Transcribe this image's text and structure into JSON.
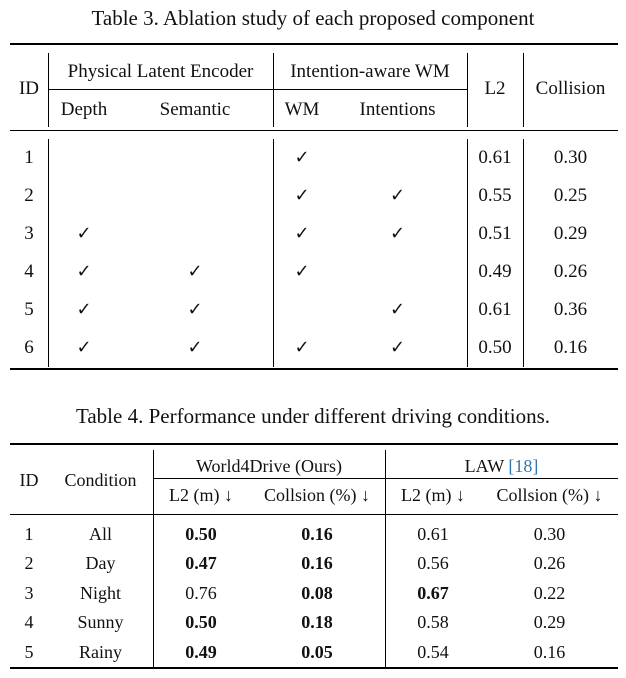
{
  "table3": {
    "caption": "Table 3. Ablation study of each proposed component",
    "headers": {
      "id": "ID",
      "group_physical": "Physical Latent Encoder",
      "group_intention": "Intention-aware WM",
      "depth": "Depth",
      "semantic": "Semantic",
      "wm": "WM",
      "intentions": "Intentions",
      "l2": "L2",
      "collision": "Collision"
    },
    "check_symbol": "✓",
    "rows": [
      {
        "id": "1",
        "depth": false,
        "semantic": false,
        "wm": true,
        "intentions": false,
        "l2": "0.61",
        "collision": "0.30"
      },
      {
        "id": "2",
        "depth": false,
        "semantic": false,
        "wm": true,
        "intentions": true,
        "l2": "0.55",
        "collision": "0.25"
      },
      {
        "id": "3",
        "depth": true,
        "semantic": false,
        "wm": true,
        "intentions": true,
        "l2": "0.51",
        "collision": "0.29"
      },
      {
        "id": "4",
        "depth": true,
        "semantic": true,
        "wm": true,
        "intentions": false,
        "l2": "0.49",
        "collision": "0.26"
      },
      {
        "id": "5",
        "depth": true,
        "semantic": true,
        "wm": false,
        "intentions": true,
        "l2": "0.61",
        "collision": "0.36"
      },
      {
        "id": "6",
        "depth": true,
        "semantic": true,
        "wm": true,
        "intentions": true,
        "l2": "0.50",
        "collision": "0.16"
      }
    ]
  },
  "table4": {
    "caption": "Table 4. Performance under different driving conditions.",
    "headers": {
      "id": "ID",
      "condition": "Condition",
      "group_ours": "World4Drive (Ours)",
      "group_law": "LAW",
      "group_law_ref": "[18]",
      "l2_m": "L2 (m) ↓",
      "collision_pct": "Collsion (%) ↓"
    },
    "rows": [
      {
        "id": "1",
        "condition": "All",
        "ours_l2": "0.50",
        "ours_l2_bold": true,
        "ours_col": "0.16",
        "ours_col_bold": true,
        "law_l2": "0.61",
        "law_l2_bold": false,
        "law_col": "0.30"
      },
      {
        "id": "2",
        "condition": "Day",
        "ours_l2": "0.47",
        "ours_l2_bold": true,
        "ours_col": "0.16",
        "ours_col_bold": true,
        "law_l2": "0.56",
        "law_l2_bold": false,
        "law_col": "0.26"
      },
      {
        "id": "3",
        "condition": "Night",
        "ours_l2": "0.76",
        "ours_l2_bold": false,
        "ours_col": "0.08",
        "ours_col_bold": true,
        "law_l2": "0.67",
        "law_l2_bold": true,
        "law_col": "0.22"
      },
      {
        "id": "4",
        "condition": "Sunny",
        "ours_l2": "0.50",
        "ours_l2_bold": true,
        "ours_col": "0.18",
        "ours_col_bold": true,
        "law_l2": "0.58",
        "law_l2_bold": false,
        "law_col": "0.29"
      },
      {
        "id": "5",
        "condition": "Rainy",
        "ours_l2": "0.49",
        "ours_l2_bold": true,
        "ours_col": "0.05",
        "ours_col_bold": true,
        "law_l2": "0.54",
        "law_l2_bold": false,
        "law_col": "0.16"
      }
    ]
  },
  "colors": {
    "text": "#111111",
    "citation": "#2f76b4",
    "rule": "#000000"
  }
}
